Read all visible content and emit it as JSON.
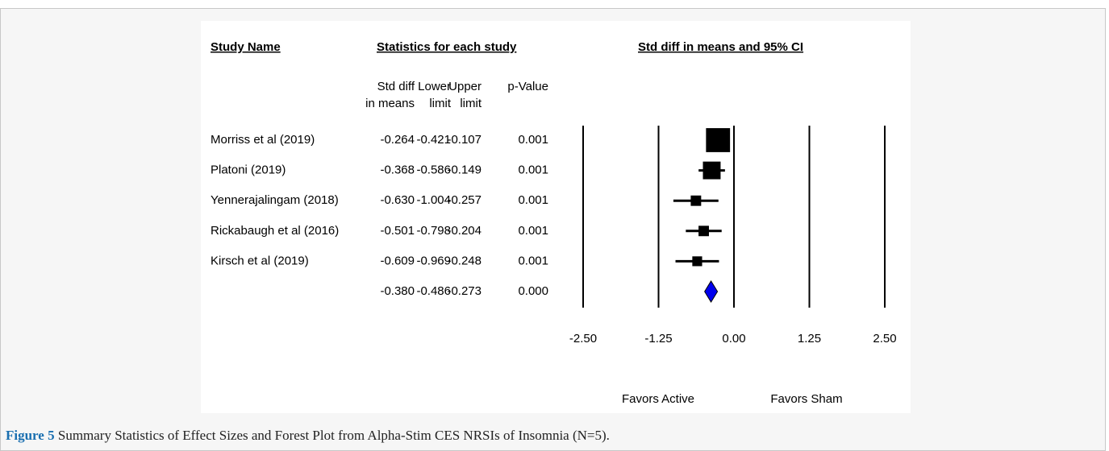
{
  "chart_data": {
    "type": "forest",
    "headers": [
      "Study Name",
      "Statistics for each study",
      "Std diff in means and 95% CI"
    ],
    "categories": [
      "Morriss et al (2019)",
      "Platoni (2019)",
      "Yennerajalingam (2018)",
      "Rickabaugh et al (2016)",
      "Kirsch et al (2019)",
      null
    ],
    "columns": [
      {
        "label": [
          "Std diff",
          "in means"
        ],
        "values": [
          -0.264,
          -0.368,
          -0.63,
          -0.501,
          -0.609,
          -0.38
        ],
        "value_labels": [
          "-0.264",
          "-0.368",
          "-0.630",
          "-0.501",
          "-0.609",
          "-0.380"
        ]
      },
      {
        "label": [
          "Lower",
          "limit"
        ],
        "values": [
          -0.421,
          -0.586,
          -1.004,
          -0.798,
          -0.969,
          -0.486
        ],
        "value_labels": [
          "-0.421",
          "-0.586",
          "-1.004",
          "-0.798",
          "-0.969",
          "-0.486"
        ]
      },
      {
        "label": [
          "Upper",
          "limit"
        ],
        "values": [
          -0.107,
          -0.149,
          -0.257,
          -0.204,
          -0.248,
          -0.273
        ],
        "value_labels": [
          "-0.107",
          "-0.149",
          "-0.257",
          "-0.204",
          "-0.248",
          "-0.273"
        ]
      },
      {
        "label": [
          "p-Value"
        ],
        "values": [
          0.001,
          0.001,
          0.001,
          0.001,
          0.001,
          0
        ],
        "value_labels": [
          "0.001",
          "0.001",
          "0.001",
          "0.001",
          "0.001",
          "0.000"
        ]
      }
    ],
    "weights": [
      48,
      26,
      9,
      9,
      8
    ],
    "summary_color": "#0000ee",
    "marker_color": "#000000",
    "xlim": [
      -2.5,
      2.5
    ],
    "xticks": [
      {
        "value": -2.5,
        "label": "-2.50"
      },
      {
        "value": -1.25,
        "label": "-1.25"
      },
      {
        "value": 0,
        "label": "0.00"
      },
      {
        "value": 1.25,
        "label": "1.25"
      },
      {
        "value": 2.5,
        "label": "2.50"
      }
    ],
    "grid": true,
    "favors": [
      "Favors Active",
      "Favors Sham"
    ]
  },
  "caption": {
    "label": "Figure 5",
    "text": " Summary Statistics of Effect Sizes and Forest Plot from Alpha-Stim CES NRSIs of Insomnia (N=5)."
  }
}
